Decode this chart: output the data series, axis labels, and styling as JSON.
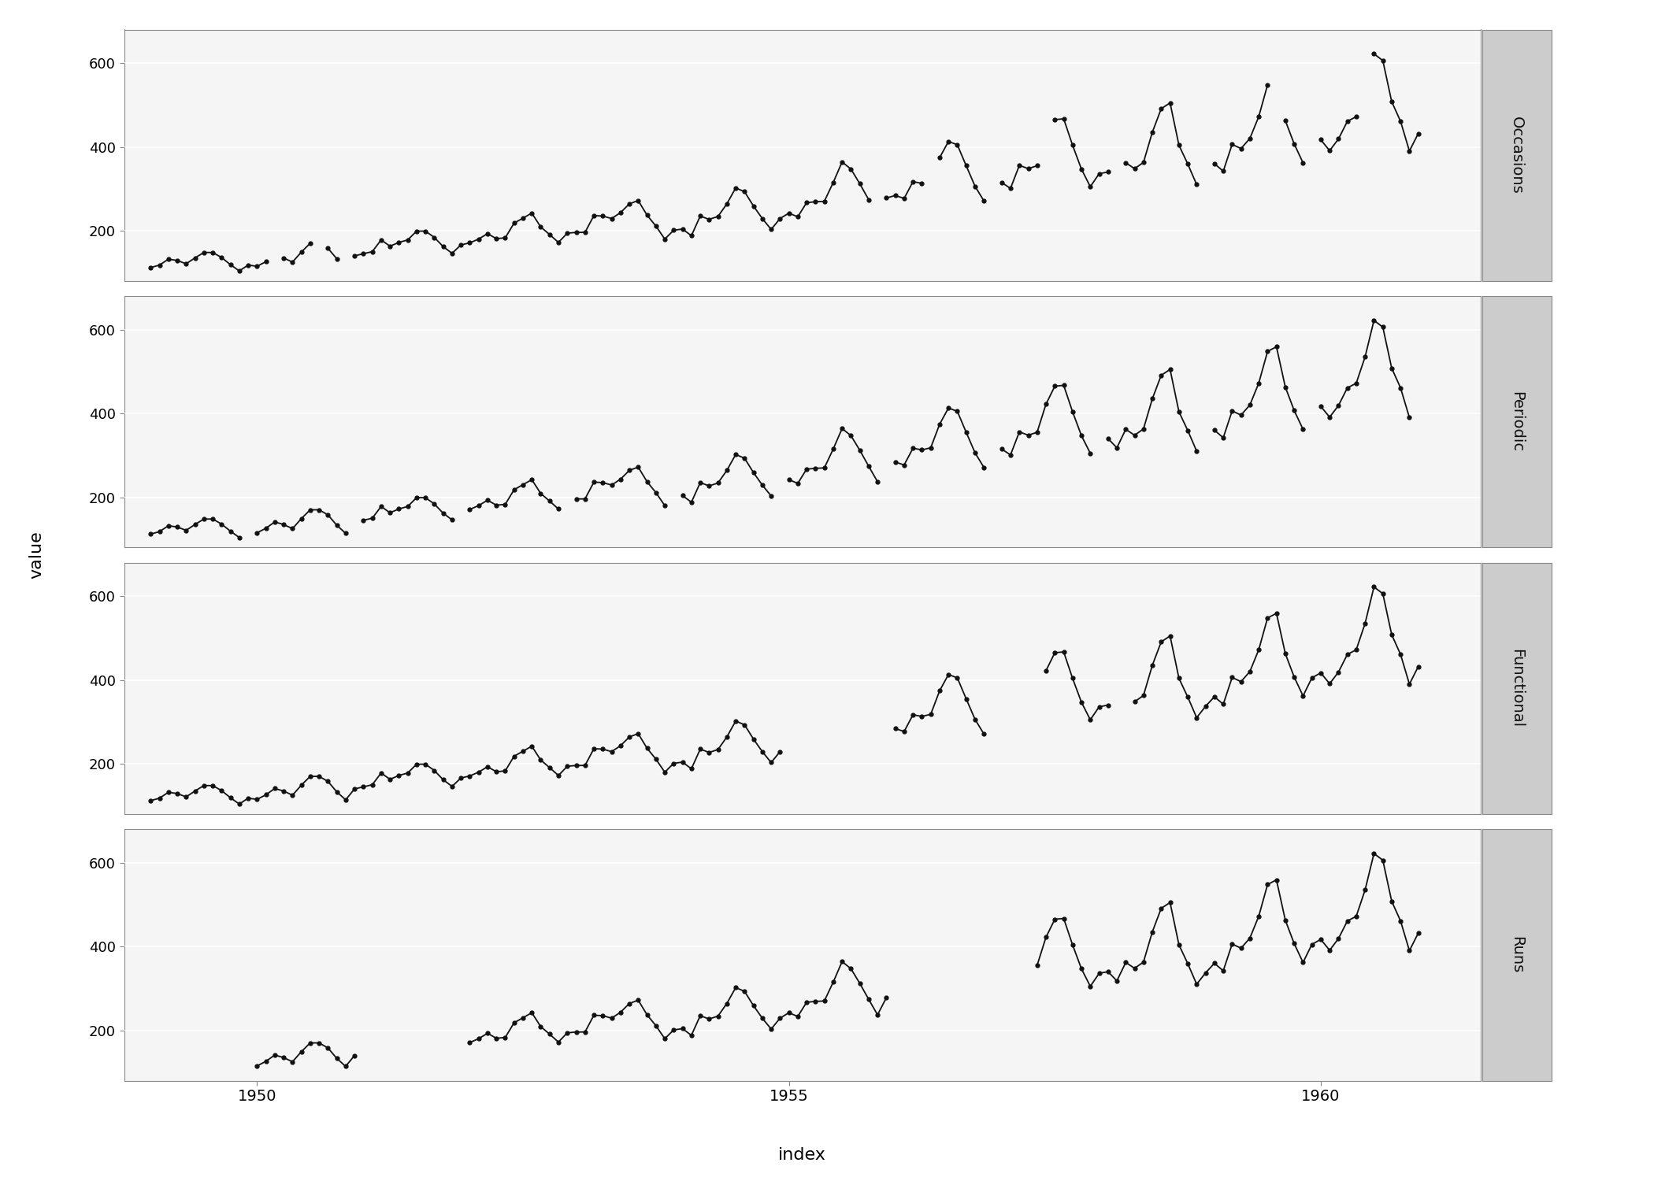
{
  "airpassengers": [
    112,
    118,
    132,
    129,
    121,
    135,
    148,
    148,
    136,
    119,
    104,
    118,
    115,
    126,
    141,
    135,
    125,
    149,
    170,
    170,
    158,
    133,
    114,
    140,
    145,
    150,
    178,
    163,
    172,
    178,
    199,
    199,
    184,
    162,
    146,
    166,
    171,
    180,
    193,
    181,
    183,
    218,
    230,
    242,
    209,
    191,
    172,
    194,
    196,
    196,
    236,
    235,
    229,
    243,
    264,
    272,
    237,
    211,
    180,
    201,
    204,
    188,
    235,
    227,
    234,
    264,
    302,
    293,
    259,
    229,
    203,
    229,
    242,
    233,
    267,
    269,
    270,
    315,
    364,
    347,
    312,
    274,
    237,
    278,
    284,
    277,
    317,
    313,
    318,
    374,
    413,
    405,
    355,
    306,
    271,
    306,
    315,
    301,
    356,
    348,
    355,
    422,
    465,
    467,
    404,
    347,
    305,
    336,
    340,
    318,
    362,
    348,
    363,
    435,
    491,
    505,
    404,
    359,
    310,
    337,
    360,
    342,
    406,
    396,
    420,
    472,
    548,
    559,
    463,
    407,
    362,
    405,
    417,
    391,
    419,
    461,
    472,
    535,
    622,
    606,
    508,
    461,
    390,
    432
  ],
  "panel_labels": [
    "Occasions",
    "Periodic",
    "Functional",
    "Runs"
  ],
  "xlabel": "index",
  "ylabel": "value",
  "line_color": "#111111",
  "marker_color": "#111111",
  "marker_size": 3.5,
  "line_width": 1.3,
  "panel_bg": "#f5f5f5",
  "strip_bg": "#cccccc",
  "strip_text_color": "#111111",
  "grid_color": "#ffffff",
  "ylim": [
    80,
    680
  ],
  "yticks": [
    200,
    400,
    600
  ],
  "start_year": 1949,
  "xticks_years": [
    1950,
    1955,
    1960
  ],
  "occasions_missing": [
    14,
    19,
    22,
    82,
    88,
    95,
    101,
    109,
    119,
    127,
    131,
    137
  ],
  "periodic_missing": [
    11,
    23,
    35,
    47,
    59,
    71,
    83,
    95,
    107,
    119,
    131,
    143
  ],
  "functional_missing": [
    72,
    73,
    74,
    75,
    76,
    77,
    78,
    79,
    80,
    81,
    82,
    83,
    95,
    96,
    97,
    98,
    99,
    100,
    109,
    110
  ],
  "runs_missing": [
    0,
    1,
    2,
    3,
    4,
    5,
    6,
    7,
    8,
    9,
    10,
    11,
    24,
    25,
    26,
    27,
    28,
    29,
    30,
    31,
    32,
    33,
    34,
    35,
    84,
    85,
    86,
    87,
    88,
    89,
    90,
    91,
    92,
    93,
    94,
    95,
    96,
    97,
    98,
    99
  ]
}
